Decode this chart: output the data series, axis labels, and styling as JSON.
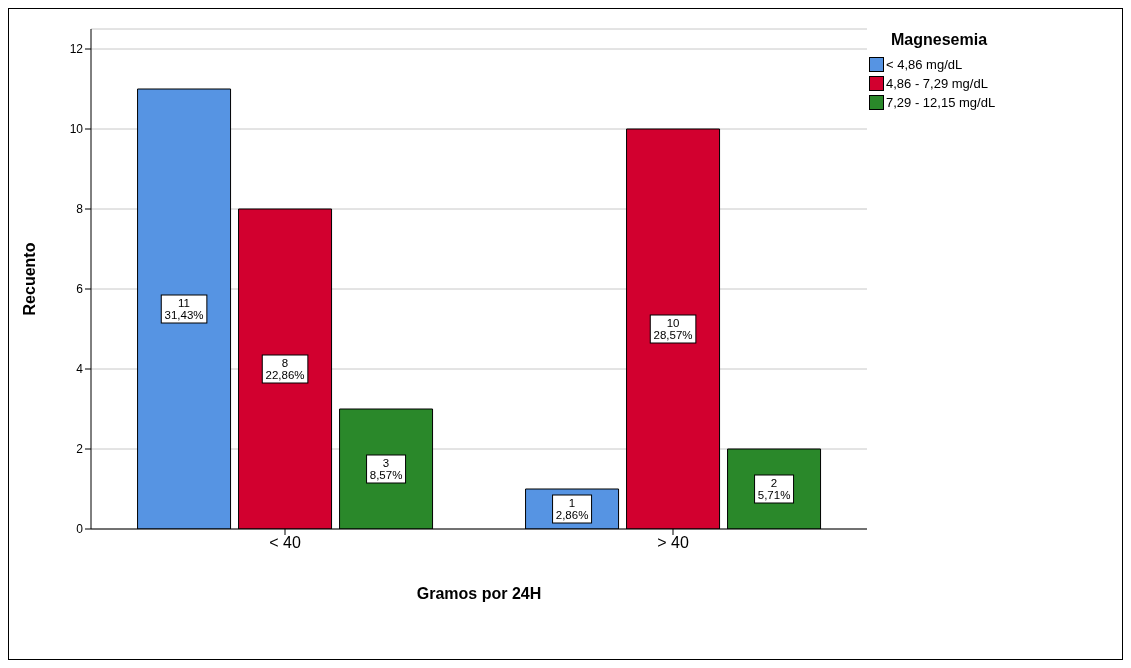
{
  "chart_data": {
    "type": "bar",
    "xlabel": "Gramos por 24H",
    "ylabel": "Recuento",
    "legend_title": "Magnesemia",
    "categories": [
      "< 40",
      "> 40"
    ],
    "series": [
      {
        "name": "< 4,86 mg/dL",
        "color": "#5694e3",
        "values": [
          11,
          1
        ],
        "value_labels": [
          "11\n31,43%",
          "1\n2,86%"
        ]
      },
      {
        "name": "4,86 - 7,29 mg/dL",
        "color": "#d2002f",
        "values": [
          8,
          10
        ],
        "value_labels": [
          "8\n22,86%",
          "10\n28,57%"
        ]
      },
      {
        "name": "7,29 - 12,15 mg/dL",
        "color": "#2a882a",
        "values": [
          3,
          2
        ],
        "value_labels": [
          "3\n8,57%",
          "2\n5,71%"
        ]
      }
    ],
    "ylim": [
      0,
      12.5
    ],
    "yticks": [
      0,
      2,
      4,
      6,
      8,
      10,
      12
    ],
    "grid": "y",
    "legend": "top right"
  }
}
